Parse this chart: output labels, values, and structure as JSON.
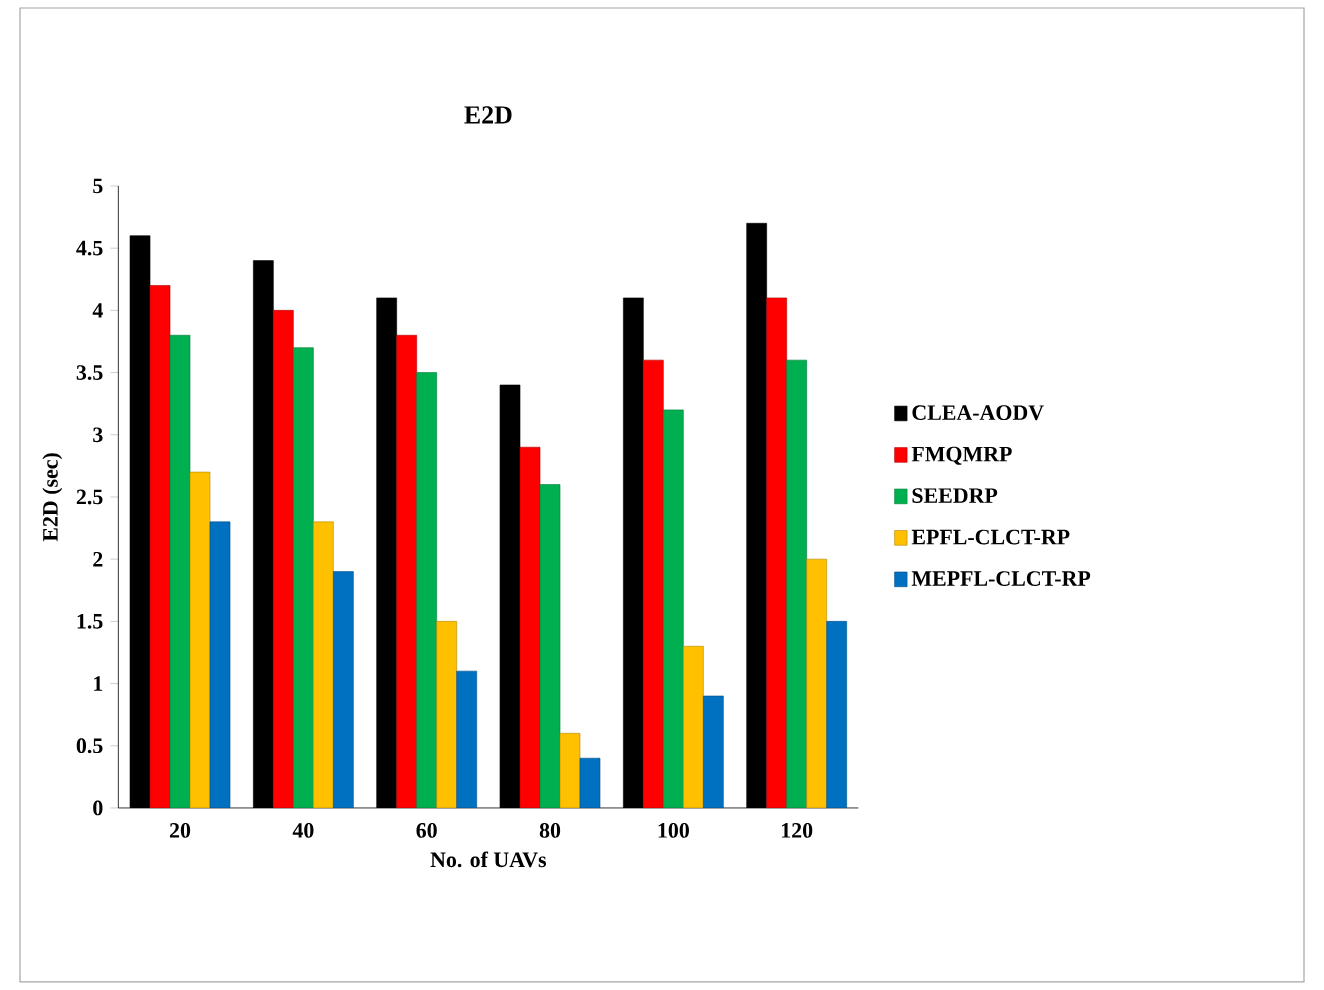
{
  "chart_data": {
    "type": "bar",
    "title": "E2D",
    "xlabel": "No. of UAVs",
    "ylabel": "E2D (sec)",
    "categories": [
      "20",
      "40",
      "60",
      "80",
      "100",
      "120"
    ],
    "series": [
      {
        "name": "CLEA-AODV",
        "color": "#000000",
        "values": [
          4.6,
          4.4,
          4.1,
          3.4,
          4.1,
          4.7
        ]
      },
      {
        "name": "FMQMRP",
        "color": "#ff0000",
        "values": [
          4.2,
          4.0,
          3.8,
          2.9,
          3.6,
          4.1
        ]
      },
      {
        "name": "SEEDRP",
        "color": "#00b050",
        "values": [
          3.8,
          3.7,
          3.5,
          2.6,
          3.2,
          3.6
        ]
      },
      {
        "name": "EPFL-CLCT-RP",
        "color": "#ffc000",
        "values": [
          2.7,
          2.3,
          1.5,
          0.6,
          1.3,
          2.0
        ]
      },
      {
        "name": "MEPFL-CLCT-RP",
        "color": "#0070c0",
        "values": [
          2.3,
          1.9,
          1.1,
          0.4,
          0.9,
          1.5
        ]
      }
    ],
    "ylim": [
      0,
      5
    ],
    "yticks": [
      0,
      0.5,
      1,
      1.5,
      2,
      2.5,
      3,
      3.5,
      4,
      4.5,
      5
    ],
    "legend": "right"
  }
}
